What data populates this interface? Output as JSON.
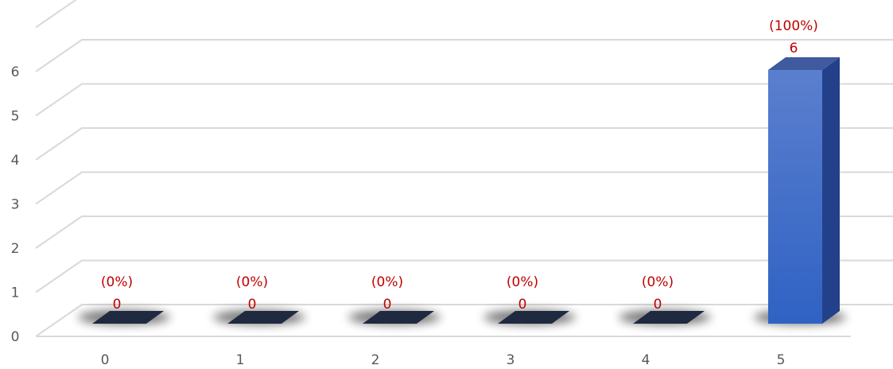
{
  "chart_data": {
    "type": "bar",
    "style": "3d-column",
    "title": "",
    "xlabel": "",
    "ylabel": "",
    "categories": [
      "0",
      "1",
      "2",
      "3",
      "4",
      "5"
    ],
    "values": [
      0,
      0,
      0,
      0,
      0,
      6
    ],
    "percent_labels": [
      "(0%)",
      "(0%)",
      "(0%)",
      "(0%)",
      "(0%)",
      "(100%)"
    ],
    "value_labels": [
      "0",
      "0",
      "0",
      "0",
      "0",
      "6"
    ],
    "y_ticks": [
      "0",
      "1",
      "2",
      "3",
      "4",
      "5",
      "6"
    ],
    "ylim": [
      0,
      7
    ],
    "grid": true,
    "legend": "none",
    "colors": {
      "bar_top": "#5b7fce",
      "bar_bottom": "#2f62c4",
      "bar_side": "#23418a",
      "bar_cap": "#3f5a9e",
      "zero_bar": "#1f2940",
      "grid": "#d9d9d9",
      "data_label": "#c00000",
      "axis_label": "#595959"
    }
  }
}
